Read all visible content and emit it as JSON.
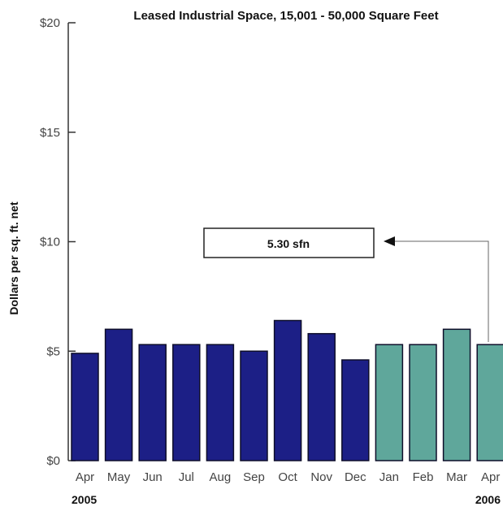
{
  "chart_data": {
    "type": "bar",
    "title": "Leased Industrial Space, 15,001 - 50,000 Square Feet",
    "ylabel": "Dollars per sq. ft. net",
    "xlabel": "",
    "ylim": [
      0,
      20
    ],
    "yticks": [
      "$0",
      "$5",
      "$10",
      "$15",
      "$20"
    ],
    "categories": [
      "Apr",
      "May",
      "Jun",
      "Jul",
      "Aug",
      "Sep",
      "Oct",
      "Nov",
      "Dec",
      "Jan",
      "Feb",
      "Mar",
      "Apr"
    ],
    "values": [
      4.9,
      6.0,
      5.3,
      5.3,
      5.3,
      5.0,
      6.4,
      5.8,
      4.6,
      5.3,
      5.3,
      6.0,
      5.3
    ],
    "year_labels": {
      "start": "2005",
      "end": "2006"
    },
    "annotation": {
      "text": "5.30 sfn",
      "points_to_index": 12
    },
    "colors": {
      "year_2005": "#1c1f86",
      "year_2006": "#5fa79b",
      "bar_edge": "#0e0e2a",
      "axis": "#333333"
    },
    "grid": false,
    "legend": "none"
  }
}
